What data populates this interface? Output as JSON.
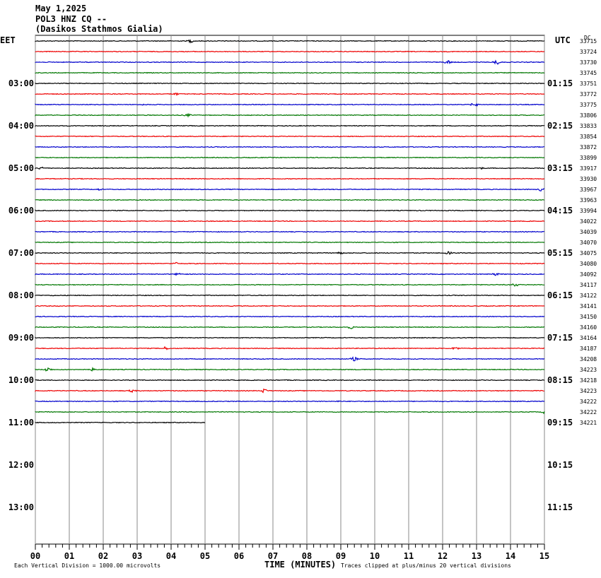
{
  "header": {
    "date": "May 1,2025",
    "station": "POL3 HNZ CQ --",
    "location": "(Dasikos Stathmos Gialia)"
  },
  "left_timezone": "EET",
  "right_timezone": "UTC",
  "dc_label": "DC",
  "left_hour_labels": [
    "03:00",
    "04:00",
    "05:00",
    "06:00",
    "07:00",
    "08:00",
    "09:00",
    "10:00",
    "11:00",
    "12:00",
    "13:00"
  ],
  "right_hour_labels": [
    "01:15",
    "02:15",
    "03:15",
    "04:15",
    "05:15",
    "06:15",
    "07:15",
    "08:15",
    "09:15",
    "10:15",
    "11:15"
  ],
  "trace_counts": [
    "33715",
    "33724",
    "33730",
    "33745",
    "33751",
    "33772",
    "33775",
    "33806",
    "33833",
    "33854",
    "33872",
    "33899",
    "33917",
    "33930",
    "33967",
    "33963",
    "33994",
    "34022",
    "34039",
    "34070",
    "34075",
    "34080",
    "34092",
    "34117",
    "34122",
    "34141",
    "34150",
    "34160",
    "34164",
    "34187",
    "34208",
    "34223",
    "34218",
    "34223",
    "34222",
    "34222",
    "34221"
  ],
  "x_axis": {
    "title": "TIME (MINUTES)",
    "ticks": [
      "00",
      "01",
      "02",
      "03",
      "04",
      "05",
      "06",
      "07",
      "08",
      "09",
      "10",
      "11",
      "12",
      "13",
      "14",
      "15"
    ]
  },
  "footer": {
    "scale_note": "Each Vertical Division = 1000.00 microvolts",
    "clip_note": "Traces clipped at plus/minus 20 vertical divisions"
  }
}
